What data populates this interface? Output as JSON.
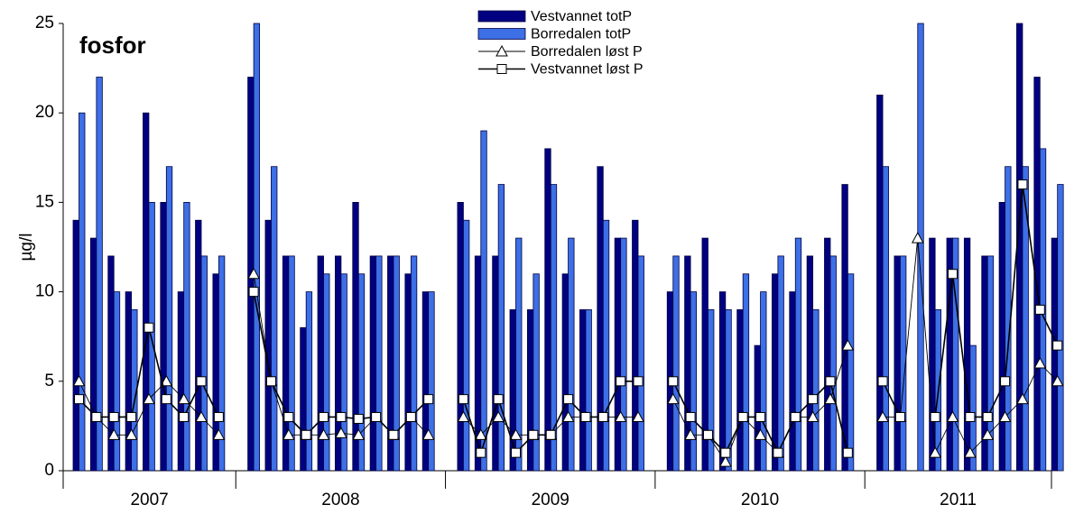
{
  "chart_data": {
    "type": "bar",
    "title": "fosfor",
    "y_label": "µg/l",
    "ylim": [
      0,
      25
    ],
    "yticks": [
      0,
      5,
      10,
      15,
      20,
      25
    ],
    "grid": false,
    "categories": [
      "2007",
      "2007",
      "2007",
      "2007",
      "2007",
      "2007",
      "2007",
      "2007",
      "2007",
      "2008",
      "2008",
      "2008",
      "2008",
      "2008",
      "2008",
      "2008",
      "2008",
      "2008",
      "2008",
      "2008",
      "2009",
      "2009",
      "2009",
      "2009",
      "2009",
      "2009",
      "2009",
      "2009",
      "2009",
      "2009",
      "2009",
      "2010",
      "2010",
      "2010",
      "2010",
      "2010",
      "2010",
      "2010",
      "2010",
      "2010",
      "2010",
      "2010",
      "2011",
      "2011",
      "2011",
      "2011",
      "2011",
      "2011",
      "2011",
      "2011",
      "2011",
      "2011",
      "2011"
    ],
    "series": [
      {
        "name": "Vestvannet totP",
        "type": "bar",
        "color": "#000080",
        "values": [
          14,
          13,
          12,
          10,
          20,
          15,
          10,
          14,
          11,
          22,
          14,
          12,
          8,
          12,
          12,
          15,
          12,
          12,
          11,
          10,
          15,
          12,
          12,
          9,
          9,
          18,
          11,
          9,
          17,
          13,
          14,
          10,
          12,
          13,
          10,
          9,
          7,
          11,
          10,
          12,
          13,
          16,
          21,
          12,
          null,
          13,
          13,
          13,
          12,
          15,
          25,
          22,
          13
        ]
      },
      {
        "name": "Borredalen totP",
        "type": "bar",
        "color": "#3d6fe6",
        "values": [
          20,
          22,
          10,
          9,
          15,
          17,
          15,
          12,
          12,
          25,
          17,
          12,
          10,
          11,
          11,
          11,
          12,
          12,
          12,
          10,
          14,
          19,
          16,
          13,
          11,
          16,
          13,
          9,
          14,
          13,
          12,
          12,
          10,
          9,
          9,
          11,
          10,
          12,
          13,
          9,
          12,
          11,
          17,
          12,
          25,
          9,
          13,
          7,
          12,
          17,
          17,
          18,
          16
        ]
      },
      {
        "name": "Borredalen løst P",
        "type": "line",
        "marker": "triangle",
        "color": "#000000",
        "values": [
          5,
          3,
          2,
          2,
          4,
          5,
          4,
          3,
          2,
          11,
          5,
          2,
          2,
          2,
          2.1,
          2,
          3,
          2,
          3,
          2,
          3,
          2,
          3,
          2,
          2,
          2,
          3,
          3,
          3,
          3,
          3,
          4,
          2,
          2,
          0.5,
          3,
          2,
          1,
          3,
          3,
          4,
          7,
          3,
          3,
          13,
          1,
          3,
          1,
          2,
          3,
          4,
          6,
          5
        ]
      },
      {
        "name": "Vestvannet løst P",
        "type": "line",
        "marker": "square",
        "color": "#000000",
        "values": [
          4,
          3,
          3,
          3,
          8,
          4,
          3,
          5,
          3,
          10,
          5,
          3,
          2,
          3,
          3,
          2.9,
          3,
          2,
          3,
          4,
          4,
          1,
          4,
          1,
          2,
          2,
          4,
          3,
          3,
          5,
          5,
          5,
          3,
          2,
          1,
          3,
          3,
          1,
          3,
          4,
          5,
          1,
          5,
          3,
          null,
          3,
          11,
          3,
          3,
          5,
          16,
          9,
          7
        ]
      }
    ]
  }
}
